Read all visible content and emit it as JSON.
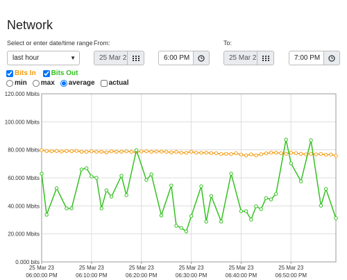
{
  "header": {
    "title": "Network"
  },
  "range": {
    "label": "Select or enter date/time range",
    "preset": "last hour",
    "from_label": "From:",
    "from_date": "25 Mar 2",
    "from_time": "6:00 PM",
    "to_label": "To:",
    "to_date": "25 Mar 2",
    "to_time": "7:00 PM"
  },
  "options": {
    "stats": [
      {
        "label": "min",
        "checked": false
      },
      {
        "label": "max",
        "checked": false
      },
      {
        "label": "average",
        "checked": true
      }
    ],
    "actual": {
      "label": "actual",
      "checked": false
    }
  },
  "chart_data": {
    "type": "line",
    "series": [
      {
        "name": "Bits In",
        "color": "#f39c12",
        "checked": true,
        "x": [
          0,
          1,
          2,
          3,
          4,
          5,
          6,
          7,
          8,
          9,
          10,
          11,
          12,
          13,
          14,
          15,
          16,
          17,
          18,
          19,
          20,
          21,
          22,
          23,
          24,
          25,
          26,
          27,
          28,
          29,
          30,
          31,
          32,
          33,
          34,
          35,
          36,
          37,
          38,
          39,
          40,
          41,
          42,
          43,
          44,
          45,
          46,
          47,
          48,
          49,
          50,
          51,
          52,
          53,
          54,
          55,
          56,
          57,
          58,
          59
        ],
        "values": [
          79.8,
          79.2,
          79.0,
          79.2,
          78.8,
          79.2,
          79.0,
          79.3,
          78.7,
          78.6,
          79.0,
          78.6,
          78.7,
          78.2,
          79.0,
          78.7,
          78.7,
          79.0,
          78.6,
          78.4,
          78.9,
          79.0,
          78.7,
          78.8,
          78.8,
          78.6,
          78.2,
          78.6,
          78.0,
          77.9,
          78.7,
          78.0,
          77.9,
          78.0,
          77.7,
          77.6,
          77.0,
          77.2,
          77.0,
          77.6,
          76.6,
          76.0,
          76.8,
          76.0,
          76.9,
          77.5,
          78.0,
          78.0,
          77.6,
          77.2,
          78.0,
          77.6,
          77.2,
          76.8,
          77.2,
          76.8,
          77.0,
          76.5,
          76.7,
          75.8
        ]
      },
      {
        "name": "Bits Out",
        "color": "#33c11f",
        "checked": true,
        "x": [
          0,
          1,
          3,
          5,
          6,
          8,
          9,
          10,
          11,
          12,
          13,
          14,
          16,
          17,
          19,
          21,
          22,
          24,
          26,
          27,
          28,
          29,
          30,
          32,
          33,
          34,
          36,
          38,
          40,
          41,
          42,
          43,
          44,
          45,
          46,
          47,
          49,
          50,
          52,
          54,
          56,
          57,
          59
        ],
        "values": [
          63.0,
          33.7,
          52.6,
          38.2,
          38.2,
          66.0,
          66.9,
          61.0,
          60.0,
          38.2,
          51.1,
          46.6,
          61.5,
          47.6,
          79.8,
          58.5,
          62.5,
          33.2,
          54.5,
          25.8,
          24.3,
          21.8,
          32.7,
          54.0,
          28.8,
          47.1,
          28.8,
          63.0,
          36.2,
          36.2,
          30.2,
          39.7,
          37.7,
          45.6,
          44.6,
          48.6,
          87.3,
          70.4,
          57.5,
          86.8,
          40.2,
          52.1,
          31.2
        ]
      }
    ],
    "xlim": [
      0,
      59
    ],
    "xticks": [
      {
        "value": 0,
        "label": [
          "25 Mar 23",
          "06:00:00 PM"
        ]
      },
      {
        "value": 10,
        "label": [
          "25 Mar 23",
          "06:10:00 PM"
        ]
      },
      {
        "value": 20,
        "label": [
          "25 Mar 23",
          "06:20:00 PM"
        ]
      },
      {
        "value": 30,
        "label": [
          "25 Mar 23",
          "06:30:00 PM"
        ]
      },
      {
        "value": 40,
        "label": [
          "25 Mar 23",
          "06:40:00 PM"
        ]
      },
      {
        "value": 50,
        "label": [
          "25 Mar 23",
          "06:50:00 PM"
        ]
      }
    ],
    "ylim": [
      0,
      120
    ],
    "yticks": [
      {
        "value": 0,
        "label": "0.000 bits"
      },
      {
        "value": 20,
        "label": "20.000 Mbits"
      },
      {
        "value": 40,
        "label": "40.000 Mbits"
      },
      {
        "value": 60,
        "label": "60.000 Mbits"
      },
      {
        "value": 80,
        "label": "80.000 Mbits"
      },
      {
        "value": 100,
        "label": "100.000 Mbits"
      },
      {
        "value": 120,
        "label": "120.000 Mbits"
      }
    ],
    "grid": true
  }
}
